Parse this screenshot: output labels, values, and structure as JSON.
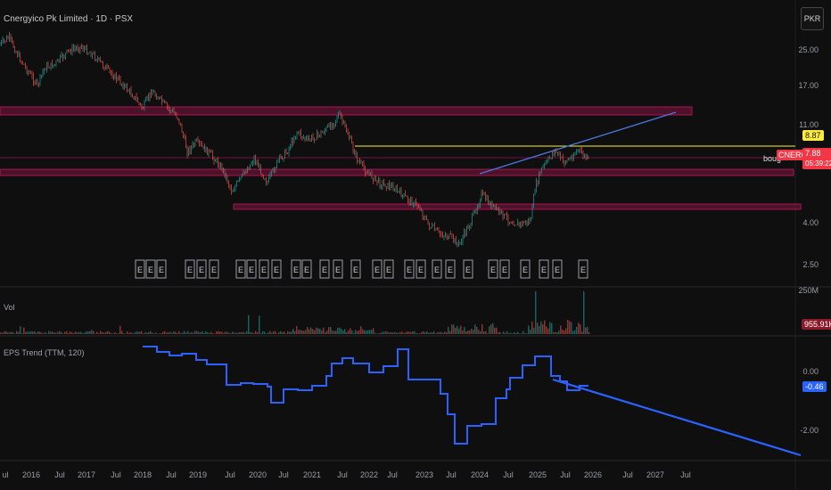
{
  "header": {
    "title": "Cnergyico Pk Limited · 1D · PSX",
    "currency": "PKR"
  },
  "price_axis": {
    "ticks": [
      "25.00",
      "17.00",
      "11.00",
      "4.00",
      "2.50"
    ]
  },
  "price_tags": {
    "hline_price": "8.87",
    "symbol": "CNERGY",
    "last_price": "7.88",
    "countdown": "05:39:22",
    "annotation": "boug"
  },
  "volume": {
    "label": "Vol",
    "max_tick": "250M",
    "last_value": "955.91K"
  },
  "eps": {
    "label": "EPS Trend (TTM, 120)",
    "ticks": [
      "0.00",
      "-2.00"
    ],
    "last_value": "-0.46"
  },
  "time_axis": {
    "labels": [
      "ul",
      "2016",
      "Jul",
      "2017",
      "Jul",
      "2018",
      "Jul",
      "2019",
      "Jul",
      "2020",
      "Jul",
      "2021",
      "Jul",
      "2022",
      "Jul",
      "2023",
      "Jul",
      "2024",
      "Jul",
      "2025",
      "Jul",
      "2026",
      "Jul",
      "2027",
      "Jul"
    ]
  },
  "colors": {
    "background": "#0f0f0f",
    "support_zone": "#c2185b",
    "trendline": "#2962ff",
    "hline": "#ffeb3b",
    "price_tag_red": "#f23645",
    "eps_line": "#2962ff",
    "candle_up": "#26a69a",
    "candle_down": "#ef5350"
  }
}
